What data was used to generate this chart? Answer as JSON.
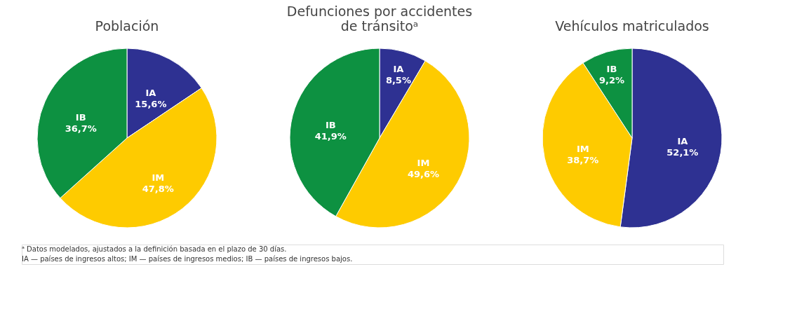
{
  "chart_data": [
    {
      "type": "pie",
      "title": "Población",
      "categories": [
        "IA",
        "IM",
        "IB"
      ],
      "values": [
        15.6,
        47.8,
        36.7
      ],
      "colors": [
        "#2e3192",
        "#fecb00",
        "#0d9141"
      ],
      "value_labels": [
        "15,6%",
        "47,8%",
        "36,7%"
      ],
      "legend": false,
      "annotations": [
        "ᵃ Datos modelados, ajustados a la definición basada en el plazo de 30 días.",
        "IA — países de ingresos altos; IM — países de ingresos medios; IB — países de ingresos bajos."
      ]
    },
    {
      "type": "pie",
      "title": "Defunciones por accidentes de tránsitoᵃ",
      "categories": [
        "IA",
        "IM",
        "IB"
      ],
      "values": [
        8.5,
        49.6,
        41.9
      ],
      "colors": [
        "#2e3192",
        "#fecb00",
        "#0d9141"
      ],
      "value_labels": [
        "8,5%",
        "49,6%",
        "41,9%"
      ],
      "legend": false
    },
    {
      "type": "pie",
      "title": "Vehículos matriculados",
      "categories": [
        "IA",
        "IM",
        "IB"
      ],
      "values": [
        52.1,
        38.7,
        9.2
      ],
      "colors": [
        "#2e3192",
        "#fecb00",
        "#0d9141"
      ],
      "value_labels": [
        "52,1%",
        "38,7%",
        "9,2%"
      ],
      "legend": false
    }
  ]
}
